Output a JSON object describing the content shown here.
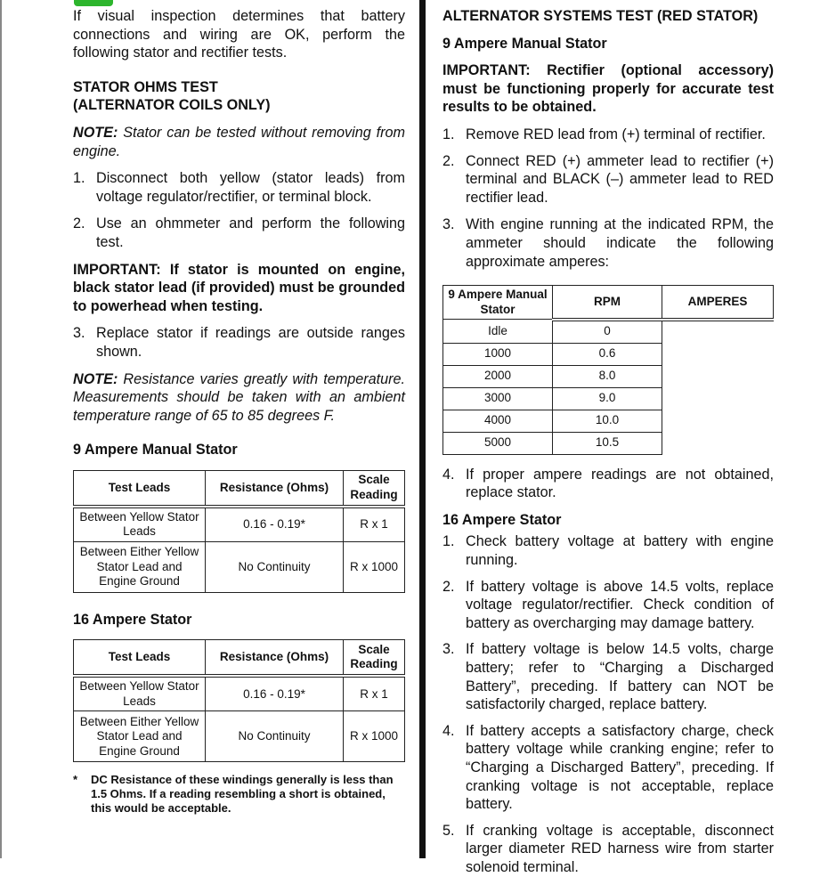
{
  "left": {
    "intro": "If visual inspection determines that battery connections and wiring are OK, perform the following stator and rectifier tests.",
    "heading_line1": "STATOR OHMS TEST",
    "heading_line2": "(ALTERNATOR COILS ONLY)",
    "note1_label": "NOTE:",
    "note1_text": " Stator can be tested without removing from engine.",
    "steps_a": [
      {
        "n": "1.",
        "text": "Disconnect both yellow (stator leads) from voltage regulator/rectifier, or terminal block."
      },
      {
        "n": "2.",
        "text": "Use an ohmmeter and perform the following test."
      }
    ],
    "important": "IMPORTANT: If stator is mounted on engine, black stator lead (if provided) must be grounded to powerhead when testing.",
    "steps_b": [
      {
        "n": "3.",
        "text": "Replace stator if readings are outside ranges shown."
      }
    ],
    "note2_label": "NOTE:",
    "note2_text": " Resistance varies greatly with temperature. Measurements should be taken with an ambient temperature range of 65 to 85 degrees F.",
    "table1_title": "9 Ampere Manual Stator",
    "table2_title": "16 Ampere Stator",
    "table_headers": [
      "Test Leads",
      "Resistance (Ohms)",
      "Scale Reading"
    ],
    "table_rows": [
      [
        "Between Yellow Stator Leads",
        "0.16 - 0.19*",
        "R x 1"
      ],
      [
        "Between Either Yellow Stator Lead and Engine Ground",
        "No Continuity",
        "R x 1000"
      ]
    ],
    "footnote_mark": "*",
    "footnote": "DC Resistance of these windings generally is less than 1.5 Ohms. If a reading resembling a short is obtained, this would be acceptable."
  },
  "right": {
    "title": "ALTERNATOR SYSTEMS TEST (RED STATOR)",
    "sub1": "9 Ampere Manual Stator",
    "important": "IMPORTANT: Rectifier (optional accessory) must be functioning properly for accurate test results to be obtained.",
    "steps_a": [
      {
        "n": "1.",
        "text": "Remove RED lead from (+) terminal of rectifier."
      },
      {
        "n": "2.",
        "text": "Connect RED (+) ammeter lead to rectifier (+) terminal and BLACK (–) ammeter lead to RED rectifier lead."
      },
      {
        "n": "3.",
        "text": "With engine running at the indicated RPM, the ammeter should indicate the following approximate amperes:"
      }
    ],
    "amp_table": {
      "label": "9 Ampere Manual Stator",
      "headers": [
        "RPM",
        "AMPERES"
      ],
      "rows": [
        [
          "Idle",
          "0"
        ],
        [
          "1000",
          "0.6"
        ],
        [
          "2000",
          "8.0"
        ],
        [
          "3000",
          "9.0"
        ],
        [
          "4000",
          "10.0"
        ],
        [
          "5000",
          "10.5"
        ]
      ]
    },
    "steps_b": [
      {
        "n": "4.",
        "text": "If proper ampere readings are not obtained, replace stator."
      }
    ],
    "sub2": "16 Ampere Stator",
    "steps_c": [
      {
        "n": "1.",
        "text": "Check battery voltage at battery with engine running."
      },
      {
        "n": "2.",
        "text": "If battery voltage is above 14.5 volts, replace voltage regulator/rectifier. Check condition of battery as overcharging may damage battery."
      },
      {
        "n": "3.",
        "text": "If battery voltage is below 14.5 volts, charge battery; refer to “Charging a Discharged Battery”, preceding. If battery can NOT be satisfactorily charged, replace battery."
      },
      {
        "n": "4.",
        "text": "If battery accepts a satisfactory charge, check battery voltage while cranking engine; refer to “Charging a Discharged Battery”, preceding. If cranking voltage is not acceptable, replace battery."
      },
      {
        "n": "5.",
        "text": "If cranking voltage is acceptable, disconnect larger diameter RED harness wire from starter solenoid terminal."
      }
    ]
  }
}
